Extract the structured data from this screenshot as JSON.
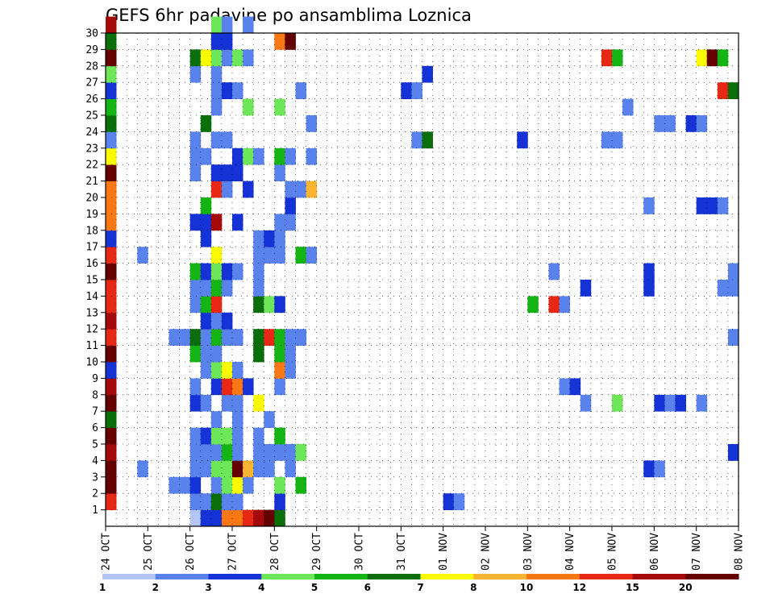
{
  "chart_data": {
    "type": "heatmap",
    "title": "GEFS 6hr padavine po ansamblima Loznica",
    "xlabel": "",
    "ylabel": "",
    "y_ticks": [
      "1",
      "2",
      "3",
      "4",
      "5",
      "6",
      "7",
      "8",
      "9",
      "10",
      "11",
      "12",
      "13",
      "14",
      "15",
      "16",
      "17",
      "18",
      "19",
      "20",
      "21",
      "22",
      "23",
      "24",
      "25",
      "26",
      "27",
      "28",
      "29",
      "30"
    ],
    "x_ticks": [
      "24 OCT",
      "25 OCT",
      "26 OCT",
      "27 OCT",
      "28 OCT",
      "29 OCT",
      "30 OCT",
      "31 OCT",
      "01 NOV",
      "02 NOV",
      "03 NOV",
      "04 NOV",
      "05 NOV",
      "06 NOV",
      "07 NOV",
      "08 NOV"
    ],
    "time_steps": 60,
    "steps_per_day": 4,
    "legend": {
      "labels": [
        "1",
        "2",
        "3",
        "4",
        "5",
        "6",
        "7",
        "8",
        "10",
        "12",
        "15",
        "20"
      ],
      "colors": [
        "#b4c6f5",
        "#5a82ec",
        "#1432d6",
        "#6ee65a",
        "#14b414",
        "#0a6e0a",
        "#fafa00",
        "#fab432",
        "#fa7814",
        "#e62814",
        "#a50a0a",
        "#640000"
      ]
    },
    "rows": [
      {
        "member": 0,
        "cells": [
          [
            8,
            0
          ],
          [
            9,
            2
          ],
          [
            10,
            2
          ],
          [
            11,
            8
          ],
          [
            12,
            8
          ],
          [
            13,
            9
          ],
          [
            14,
            10
          ],
          [
            15,
            11
          ],
          [
            16,
            5
          ]
        ]
      },
      {
        "member": 1,
        "cells": [
          [
            0,
            9
          ],
          [
            8,
            1
          ],
          [
            9,
            1
          ],
          [
            10,
            5
          ],
          [
            11,
            1
          ],
          [
            12,
            1
          ],
          [
            16,
            2
          ],
          [
            32,
            2
          ],
          [
            33,
            1
          ]
        ]
      },
      {
        "member": 2,
        "cells": [
          [
            0,
            11
          ],
          [
            6,
            1
          ],
          [
            7,
            1
          ],
          [
            8,
            2
          ],
          [
            10,
            1
          ],
          [
            11,
            3
          ],
          [
            12,
            6
          ],
          [
            13,
            1
          ],
          [
            16,
            3
          ],
          [
            18,
            4
          ]
        ]
      },
      {
        "member": 3,
        "cells": [
          [
            0,
            11
          ],
          [
            3,
            1
          ],
          [
            8,
            1
          ],
          [
            9,
            1
          ],
          [
            10,
            3
          ],
          [
            11,
            3
          ],
          [
            12,
            11
          ],
          [
            13,
            7
          ],
          [
            14,
            1
          ],
          [
            15,
            1
          ],
          [
            17,
            1
          ],
          [
            51,
            2
          ],
          [
            52,
            1
          ]
        ]
      },
      {
        "member": 4,
        "cells": [
          [
            0,
            10
          ],
          [
            8,
            1
          ],
          [
            9,
            1
          ],
          [
            10,
            1
          ],
          [
            11,
            4
          ],
          [
            12,
            1
          ],
          [
            14,
            1
          ],
          [
            15,
            1
          ],
          [
            16,
            1
          ],
          [
            17,
            1
          ],
          [
            18,
            3
          ],
          [
            59,
            2
          ]
        ]
      },
      {
        "member": 5,
        "cells": [
          [
            0,
            11
          ],
          [
            8,
            1
          ],
          [
            9,
            2
          ],
          [
            10,
            3
          ],
          [
            11,
            3
          ],
          [
            12,
            1
          ],
          [
            14,
            1
          ],
          [
            16,
            4
          ]
        ]
      },
      {
        "member": 6,
        "cells": [
          [
            0,
            5
          ],
          [
            10,
            1
          ],
          [
            12,
            1
          ],
          [
            15,
            1
          ]
        ]
      },
      {
        "member": 7,
        "cells": [
          [
            0,
            11
          ],
          [
            8,
            2
          ],
          [
            9,
            1
          ],
          [
            11,
            1
          ],
          [
            12,
            1
          ],
          [
            14,
            6
          ],
          [
            45,
            1
          ],
          [
            48,
            3
          ],
          [
            52,
            2
          ],
          [
            53,
            1
          ],
          [
            54,
            2
          ],
          [
            56,
            1
          ]
        ]
      },
      {
        "member": 8,
        "cells": [
          [
            0,
            10
          ],
          [
            8,
            1
          ],
          [
            10,
            2
          ],
          [
            11,
            9
          ],
          [
            12,
            8
          ],
          [
            13,
            2
          ],
          [
            16,
            1
          ],
          [
            43,
            1
          ],
          [
            44,
            2
          ]
        ]
      },
      {
        "member": 9,
        "cells": [
          [
            0,
            2
          ],
          [
            9,
            1
          ],
          [
            10,
            3
          ],
          [
            11,
            6
          ],
          [
            12,
            1
          ],
          [
            16,
            8
          ],
          [
            17,
            1
          ]
        ]
      },
      {
        "member": 10,
        "cells": [
          [
            0,
            11
          ],
          [
            8,
            4
          ],
          [
            9,
            1
          ],
          [
            10,
            1
          ],
          [
            14,
            5
          ],
          [
            16,
            4
          ],
          [
            17,
            1
          ]
        ]
      },
      {
        "member": 11,
        "cells": [
          [
            0,
            9
          ],
          [
            6,
            1
          ],
          [
            7,
            1
          ],
          [
            8,
            5
          ],
          [
            9,
            1
          ],
          [
            10,
            4
          ],
          [
            11,
            1
          ],
          [
            12,
            1
          ],
          [
            14,
            5
          ],
          [
            15,
            9
          ],
          [
            16,
            4
          ],
          [
            17,
            1
          ],
          [
            18,
            1
          ],
          [
            59,
            1
          ]
        ]
      },
      {
        "member": 12,
        "cells": [
          [
            0,
            10
          ],
          [
            9,
            2
          ],
          [
            10,
            1
          ],
          [
            11,
            2
          ]
        ]
      },
      {
        "member": 13,
        "cells": [
          [
            0,
            9
          ],
          [
            8,
            1
          ],
          [
            9,
            4
          ],
          [
            10,
            9
          ],
          [
            14,
            5
          ],
          [
            15,
            3
          ],
          [
            16,
            2
          ],
          [
            40,
            4
          ],
          [
            42,
            9
          ],
          [
            43,
            1
          ]
        ]
      },
      {
        "member": 14,
        "cells": [
          [
            0,
            9
          ],
          [
            8,
            1
          ],
          [
            9,
            1
          ],
          [
            10,
            4
          ],
          [
            11,
            1
          ],
          [
            14,
            1
          ],
          [
            45,
            2
          ],
          [
            51,
            2
          ],
          [
            58,
            1
          ],
          [
            59,
            1
          ]
        ]
      },
      {
        "member": 15,
        "cells": [
          [
            0,
            11
          ],
          [
            8,
            4
          ],
          [
            9,
            2
          ],
          [
            10,
            3
          ],
          [
            11,
            2
          ],
          [
            12,
            1
          ],
          [
            14,
            1
          ],
          [
            42,
            1
          ],
          [
            51,
            2
          ],
          [
            59,
            1
          ]
        ]
      },
      {
        "member": 16,
        "cells": [
          [
            0,
            9
          ],
          [
            3,
            1
          ],
          [
            10,
            6
          ],
          [
            14,
            1
          ],
          [
            15,
            1
          ],
          [
            16,
            1
          ],
          [
            18,
            4
          ],
          [
            19,
            1
          ]
        ]
      },
      {
        "member": 17,
        "cells": [
          [
            0,
            2
          ],
          [
            9,
            2
          ],
          [
            14,
            1
          ],
          [
            15,
            2
          ],
          [
            16,
            1
          ]
        ]
      },
      {
        "member": 18,
        "cells": [
          [
            0,
            8
          ],
          [
            8,
            2
          ],
          [
            9,
            2
          ],
          [
            10,
            10
          ],
          [
            12,
            2
          ],
          [
            16,
            1
          ],
          [
            17,
            1
          ]
        ]
      },
      {
        "member": 19,
        "cells": [
          [
            0,
            8
          ],
          [
            9,
            4
          ],
          [
            17,
            2
          ],
          [
            51,
            1
          ],
          [
            56,
            2
          ],
          [
            57,
            2
          ],
          [
            58,
            1
          ]
        ]
      },
      {
        "member": 20,
        "cells": [
          [
            0,
            8
          ],
          [
            10,
            9
          ],
          [
            11,
            1
          ],
          [
            13,
            2
          ],
          [
            17,
            1
          ],
          [
            18,
            1
          ],
          [
            19,
            7
          ]
        ]
      },
      {
        "member": 21,
        "cells": [
          [
            0,
            11
          ],
          [
            8,
            1
          ],
          [
            10,
            2
          ],
          [
            11,
            2
          ],
          [
            12,
            2
          ],
          [
            16,
            1
          ]
        ]
      },
      {
        "member": 22,
        "cells": [
          [
            0,
            6
          ],
          [
            8,
            1
          ],
          [
            9,
            1
          ],
          [
            12,
            2
          ],
          [
            13,
            3
          ],
          [
            14,
            1
          ],
          [
            16,
            4
          ],
          [
            17,
            1
          ],
          [
            19,
            1
          ]
        ]
      },
      {
        "member": 23,
        "cells": [
          [
            0,
            1
          ],
          [
            8,
            1
          ],
          [
            10,
            1
          ],
          [
            11,
            1
          ],
          [
            29,
            1
          ],
          [
            30,
            5
          ],
          [
            39,
            2
          ],
          [
            47,
            1
          ],
          [
            48,
            1
          ]
        ]
      },
      {
        "member": 24,
        "cells": [
          [
            0,
            5
          ],
          [
            9,
            5
          ],
          [
            19,
            1
          ],
          [
            52,
            1
          ],
          [
            53,
            1
          ],
          [
            55,
            2
          ],
          [
            56,
            1
          ]
        ]
      },
      {
        "member": 25,
        "cells": [
          [
            0,
            4
          ],
          [
            10,
            1
          ],
          [
            13,
            3
          ],
          [
            16,
            3
          ],
          [
            49,
            1
          ]
        ]
      },
      {
        "member": 26,
        "cells": [
          [
            0,
            2
          ],
          [
            10,
            1
          ],
          [
            11,
            2
          ],
          [
            12,
            1
          ],
          [
            18,
            1
          ],
          [
            28,
            2
          ],
          [
            29,
            1
          ],
          [
            58,
            9
          ],
          [
            59,
            5
          ]
        ]
      },
      {
        "member": 27,
        "cells": [
          [
            0,
            3
          ],
          [
            8,
            1
          ],
          [
            10,
            1
          ],
          [
            30,
            2
          ]
        ]
      },
      {
        "member": 28,
        "cells": [
          [
            0,
            11
          ],
          [
            8,
            5
          ],
          [
            9,
            6
          ],
          [
            10,
            3
          ],
          [
            11,
            1
          ],
          [
            12,
            3
          ],
          [
            13,
            1
          ],
          [
            47,
            9
          ],
          [
            48,
            4
          ],
          [
            56,
            6
          ],
          [
            57,
            11
          ],
          [
            58,
            4
          ]
        ]
      },
      {
        "member": 29,
        "cells": [
          [
            0,
            5
          ],
          [
            10,
            2
          ],
          [
            11,
            2
          ],
          [
            16,
            8
          ],
          [
            17,
            11
          ]
        ]
      },
      {
        "member": 30,
        "cells": [
          [
            0,
            10
          ],
          [
            10,
            3
          ],
          [
            11,
            1
          ],
          [
            13,
            1
          ]
        ]
      }
    ]
  }
}
